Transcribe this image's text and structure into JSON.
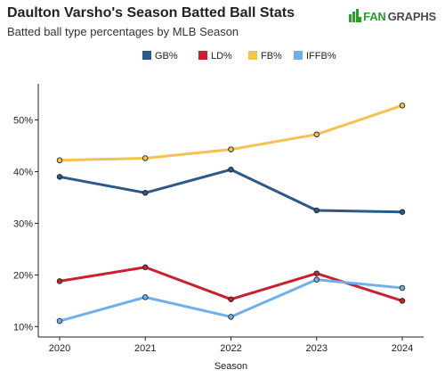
{
  "header": {
    "title": "Daulton Varsho's Season Batted Ball Stats",
    "subtitle": "Batted ball type percentages by MLB Season",
    "brand_prefix": "FAN",
    "brand_suffix": "GRAPHS",
    "brand_icon": "fangraphs-logo-icon"
  },
  "chart_data": {
    "type": "line",
    "x": [
      2020,
      2021,
      2022,
      2023,
      2024
    ],
    "xlabel": "Season",
    "ylabel": "",
    "ylim": [
      8,
      57
    ],
    "yticks": [
      10,
      20,
      30,
      40,
      50
    ],
    "ytick_labels": [
      "10%",
      "20%",
      "30%",
      "40%",
      "50%"
    ],
    "xtick_labels": [
      "2020",
      "2021",
      "2022",
      "2023",
      "2024"
    ],
    "grid": false,
    "legend_position": "top",
    "series": [
      {
        "name": "GB%",
        "color": "#2b5a8a",
        "values": [
          39.0,
          35.9,
          40.4,
          32.5,
          32.2
        ]
      },
      {
        "name": "LD%",
        "color": "#c8202f",
        "values": [
          18.8,
          21.5,
          15.3,
          20.3,
          15.0
        ]
      },
      {
        "name": "FB%",
        "color": "#f3c24f",
        "values": [
          42.2,
          42.6,
          44.3,
          47.2,
          52.8
        ]
      },
      {
        "name": "IFFB%",
        "color": "#6fb0ea",
        "values": [
          11.1,
          15.7,
          11.9,
          19.1,
          17.5
        ]
      }
    ]
  }
}
